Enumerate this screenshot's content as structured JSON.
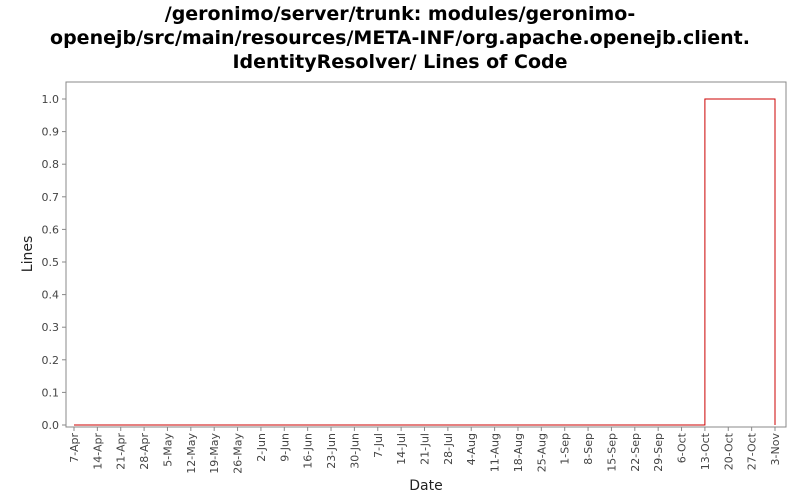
{
  "chart_data": {
    "type": "area",
    "title_lines": [
      "/geronimo/server/trunk: modules/geronimo-",
      "openejb/src/main/resources/META-INF/org.apache.openejb.client.",
      "IdentityResolver/ Lines of Code"
    ],
    "xlabel": "Date",
    "ylabel": "Lines",
    "ylim": [
      0,
      1.0
    ],
    "yticks": [
      "0.0",
      "0.1",
      "0.2",
      "0.3",
      "0.4",
      "0.5",
      "0.6",
      "0.7",
      "0.8",
      "0.9",
      "1.0"
    ],
    "categories": [
      "7-Apr",
      "14-Apr",
      "21-Apr",
      "28-Apr",
      "5-May",
      "12-May",
      "19-May",
      "26-May",
      "2-Jun",
      "9-Jun",
      "16-Jun",
      "23-Jun",
      "30-Jun",
      "7-Jul",
      "14-Jul",
      "21-Jul",
      "28-Jul",
      "4-Aug",
      "11-Aug",
      "18-Aug",
      "25-Aug",
      "1-Sep",
      "8-Sep",
      "15-Sep",
      "22-Sep",
      "29-Sep",
      "6-Oct",
      "13-Oct",
      "20-Oct",
      "27-Oct",
      "3-Nov"
    ],
    "series": [
      {
        "values": [
          0,
          0,
          0,
          0,
          0,
          0,
          0,
          0,
          0,
          0,
          0,
          0,
          0,
          0,
          0,
          0,
          0,
          0,
          0,
          0,
          0,
          0,
          0,
          0,
          0,
          0,
          0,
          1.0,
          1.0,
          1.0,
          1.0
        ],
        "color": "#cc0000"
      }
    ],
    "grid": false
  }
}
